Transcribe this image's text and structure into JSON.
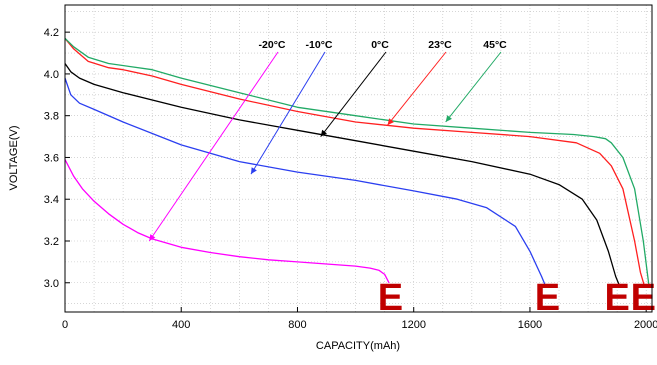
{
  "chart_data": {
    "type": "line",
    "xlabel": "CAPACITY(mAh)",
    "ylabel": "VOLTAGE(V)",
    "xlim": [
      0,
      2020
    ],
    "ylim": [
      2.86,
      4.33
    ],
    "x_ticks": [
      0,
      400,
      800,
      1200,
      1600,
      2000
    ],
    "x_tick_labels": [
      "0",
      "400",
      "800",
      "1200",
      "1600",
      "2000"
    ],
    "y_ticks": [
      3.0,
      3.2,
      3.4,
      3.6,
      3.8,
      4.0,
      4.2
    ],
    "y_tick_labels": [
      "3.0",
      "3.2",
      "3.4",
      "3.6",
      "3.8",
      "4.0",
      "4.2"
    ],
    "grid": true,
    "series": [
      {
        "name": "-20°C",
        "color": "#ff00ff",
        "x": [
          0,
          30,
          60,
          100,
          150,
          200,
          250,
          300,
          400,
          500,
          600,
          700,
          800,
          900,
          1000,
          1050,
          1080,
          1100,
          1115
        ],
        "y": [
          3.59,
          3.51,
          3.45,
          3.39,
          3.33,
          3.28,
          3.24,
          3.21,
          3.17,
          3.145,
          3.125,
          3.11,
          3.1,
          3.09,
          3.08,
          3.07,
          3.06,
          3.04,
          3.0
        ]
      },
      {
        "name": "-10°C",
        "color": "#2b3ff0",
        "x": [
          0,
          20,
          50,
          100,
          200,
          400,
          600,
          800,
          1000,
          1200,
          1350,
          1450,
          1550,
          1600,
          1620,
          1640,
          1655
        ],
        "y": [
          3.98,
          3.9,
          3.86,
          3.83,
          3.77,
          3.66,
          3.58,
          3.53,
          3.49,
          3.44,
          3.4,
          3.36,
          3.27,
          3.15,
          3.09,
          3.03,
          2.98
        ]
      },
      {
        "name": "0°C",
        "color": "#000000",
        "x": [
          0,
          20,
          50,
          100,
          200,
          400,
          600,
          800,
          1000,
          1200,
          1400,
          1600,
          1700,
          1780,
          1830,
          1870,
          1895,
          1910
        ],
        "y": [
          4.05,
          4.01,
          3.98,
          3.95,
          3.91,
          3.84,
          3.78,
          3.73,
          3.68,
          3.63,
          3.58,
          3.52,
          3.47,
          3.4,
          3.3,
          3.15,
          3.03,
          2.98
        ]
      },
      {
        "name": "23°C",
        "color": "#ff2020",
        "x": [
          0,
          30,
          80,
          150,
          200,
          300,
          400,
          600,
          800,
          1000,
          1200,
          1400,
          1600,
          1760,
          1840,
          1880,
          1920,
          1960,
          1980,
          1995
        ],
        "y": [
          4.17,
          4.12,
          4.06,
          4.03,
          4.02,
          3.99,
          3.95,
          3.88,
          3.82,
          3.77,
          3.74,
          3.72,
          3.7,
          3.67,
          3.62,
          3.56,
          3.45,
          3.2,
          3.05,
          2.98
        ]
      },
      {
        "name": "45°C",
        "color": "#22aa66",
        "x": [
          0,
          30,
          80,
          150,
          300,
          400,
          600,
          800,
          1000,
          1200,
          1400,
          1600,
          1750,
          1820,
          1860,
          1880,
          1920,
          1960,
          1990,
          2010
        ],
        "y": [
          4.17,
          4.13,
          4.08,
          4.05,
          4.02,
          3.98,
          3.91,
          3.84,
          3.8,
          3.76,
          3.74,
          3.72,
          3.71,
          3.7,
          3.69,
          3.67,
          3.6,
          3.45,
          3.2,
          2.98
        ]
      }
    ],
    "annotations": [
      {
        "label": "-20°C",
        "series": 0,
        "target": [
          290,
          3.2
        ]
      },
      {
        "label": "-10°C",
        "series": 1,
        "target": [
          640,
          3.52
        ]
      },
      {
        "label": "0°C",
        "series": 2,
        "target": [
          880,
          3.7
        ]
      },
      {
        "label": "23°C",
        "series": 3,
        "target": [
          1110,
          3.755
        ]
      },
      {
        "label": "45°C",
        "series": 4,
        "target": [
          1310,
          3.77
        ]
      }
    ],
    "end_markers": [
      {
        "label": "E",
        "color": "#c00000",
        "x": 1120
      },
      {
        "label": "E",
        "color": "#c00000",
        "x": 1660
      },
      {
        "label": "E",
        "color": "#c00000",
        "x": 1900
      },
      {
        "label": "E",
        "color": "#c00000",
        "x": 1990
      }
    ]
  }
}
